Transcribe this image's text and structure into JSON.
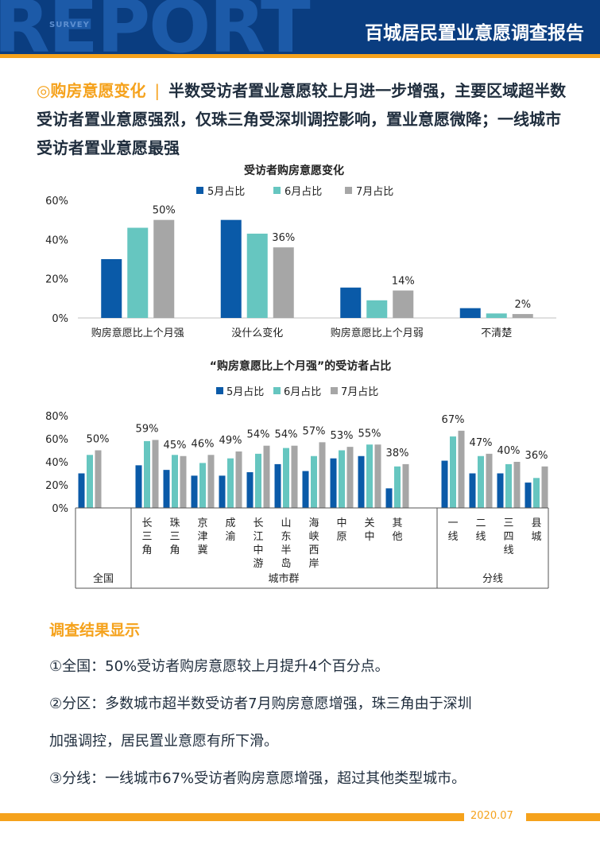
{
  "header": {
    "logo_text": "REPORT",
    "logo_sub": "SURVEY",
    "title": "百城居民置业意愿调查报告"
  },
  "headline": {
    "tag": "◎购房意愿变化",
    "separator": "|",
    "text": "半数受访者置业意愿较上月进一步增强，主要区域超半数受访者置业意愿强烈，仅珠三角受深圳调控影响，置业意愿微降；一线城市受访者置业意愿最强"
  },
  "colors": {
    "may": "#0a5aa8",
    "june": "#66c6c0",
    "july": "#a6a6a6",
    "accent": "#f5a21c",
    "header": "#0a3d80"
  },
  "chart_data": [
    {
      "type": "bar",
      "title": "受访者购房意愿变化",
      "categories": [
        "购房意愿比上个月强",
        "没什么变化",
        "购房意愿比上个月弱",
        "不清楚"
      ],
      "series": [
        {
          "name": "5月占比",
          "values": [
            30,
            50,
            15.5,
            5
          ]
        },
        {
          "name": "6月占比",
          "values": [
            46,
            43,
            9,
            2.3
          ]
        },
        {
          "name": "7月占比",
          "values": [
            50,
            36,
            14,
            2
          ]
        }
      ],
      "data_labels": [
        "50%",
        "36%",
        "14%",
        "2%"
      ],
      "yticks": [
        "0%",
        "20%",
        "40%",
        "60%"
      ],
      "ylim": [
        0,
        60
      ]
    },
    {
      "type": "bar",
      "title": "“购房意愿比上个月强”的受访者占比",
      "categories": [
        "全国",
        "长三角",
        "珠三角",
        "京津冀",
        "成渝",
        "长江中游",
        "山东半岛",
        "海峡西岸",
        "中原",
        "关中",
        "其他",
        "一线",
        "二线",
        "三四线",
        "县城"
      ],
      "category_labels": [
        "全国",
        "长三角",
        "珠三角",
        "京津冀",
        "成渝",
        "长江中游",
        "山东半岛",
        "海峡西岸",
        "中原",
        "关中",
        "其他",
        "一线",
        "二线",
        "三四线",
        "县城"
      ],
      "groups": [
        "全国",
        "城市群",
        "分线"
      ],
      "series": [
        {
          "name": "5月占比",
          "values": [
            30,
            37,
            33,
            28,
            28,
            31,
            38,
            32,
            43,
            45,
            17,
            41,
            30,
            30,
            22
          ]
        },
        {
          "name": "6月占比",
          "values": [
            46,
            58,
            46,
            39,
            43,
            47,
            52,
            45,
            50,
            55,
            36,
            62,
            45,
            38,
            26
          ]
        },
        {
          "name": "7月占比",
          "values": [
            50,
            59,
            45,
            46,
            49,
            54,
            54,
            57,
            53,
            55,
            38,
            67,
            47,
            40,
            36
          ]
        }
      ],
      "data_labels": [
        "50%",
        "59%",
        "45%",
        "46%",
        "49%",
        "54%",
        "54%",
        "57%",
        "53%",
        "55%",
        "38%",
        "67%",
        "47%",
        "40%",
        "36%"
      ],
      "yticks": [
        "0%",
        "20%",
        "40%",
        "60%",
        "80%"
      ],
      "ylim": [
        0,
        80
      ]
    }
  ],
  "findings": {
    "title": "调查结果显示",
    "items": [
      "①全国：50%受访者购房意愿较上月提升4个百分点。",
      "②分区：多数城市超半数受访者7月购房意愿增强，珠三角由于深圳",
      "加强调控，居民置业意愿有所下滑。",
      "③分线：一线城市67%受访者购房意愿增强，超过其他类型城市。"
    ]
  },
  "footer": {
    "date": "2020.07"
  }
}
